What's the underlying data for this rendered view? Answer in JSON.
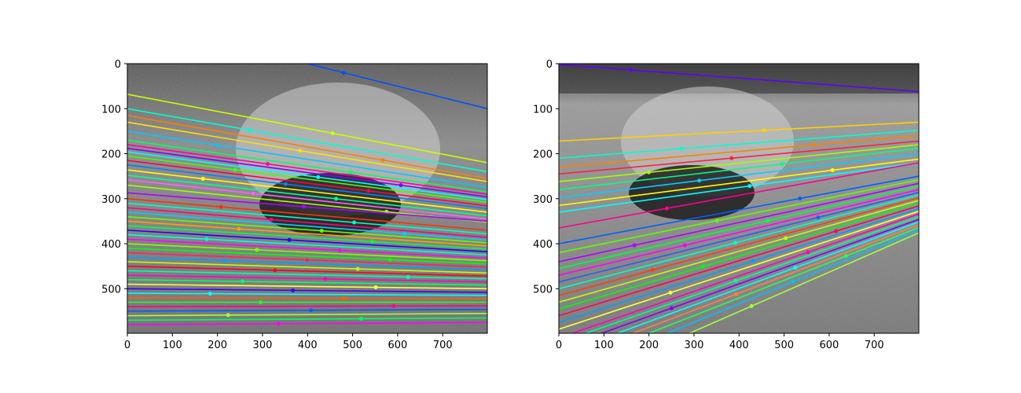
{
  "chart_data": [
    {
      "type": "image",
      "title": "",
      "xlabel": "",
      "ylabel": "",
      "xlim": [
        0,
        799
      ],
      "ylim": [
        599,
        0
      ],
      "xticks": [
        0,
        100,
        200,
        300,
        400,
        500,
        600,
        700
      ],
      "yticks": [
        0,
        100,
        200,
        300,
        400,
        500
      ],
      "xtick_labels": [
        "0",
        "100",
        "200",
        "300",
        "400",
        "500",
        "600",
        "700"
      ],
      "ytick_labels": [
        "0",
        "100",
        "200",
        "300",
        "400",
        "500"
      ],
      "content": "grayscale photo with colored epipolar lines",
      "lines": [
        {
          "x1": 400,
          "y1": 0,
          "x2": 799,
          "y2": 100,
          "color": "#0050ff"
        },
        {
          "x1": 0,
          "y1": 68,
          "x2": 799,
          "y2": 220,
          "color": "#c8ff00"
        },
        {
          "x1": 0,
          "y1": 100,
          "x2": 799,
          "y2": 240,
          "color": "#00ffd0"
        },
        {
          "x1": 0,
          "y1": 115,
          "x2": 799,
          "y2": 255,
          "color": "#ff8000"
        },
        {
          "x1": 0,
          "y1": 130,
          "x2": 799,
          "y2": 262,
          "color": "#ffe000"
        },
        {
          "x1": 0,
          "y1": 150,
          "x2": 799,
          "y2": 275,
          "color": "#00c8ff"
        },
        {
          "x1": 0,
          "y1": 170,
          "x2": 799,
          "y2": 285,
          "color": "#00ff60"
        },
        {
          "x1": 0,
          "y1": 180,
          "x2": 799,
          "y2": 290,
          "color": "#ff00a0"
        },
        {
          "x1": 0,
          "y1": 188,
          "x2": 799,
          "y2": 296,
          "color": "#8000ff"
        },
        {
          "x1": 0,
          "y1": 196,
          "x2": 799,
          "y2": 302,
          "color": "#00ffff"
        },
        {
          "x1": 0,
          "y1": 205,
          "x2": 799,
          "y2": 308,
          "color": "#40ff00"
        },
        {
          "x1": 0,
          "y1": 215,
          "x2": 799,
          "y2": 316,
          "color": "#ff0040"
        },
        {
          "x1": 0,
          "y1": 225,
          "x2": 799,
          "y2": 322,
          "color": "#0080ff"
        },
        {
          "x1": 0,
          "y1": 236,
          "x2": 799,
          "y2": 330,
          "color": "#ffff00"
        },
        {
          "x1": 0,
          "y1": 248,
          "x2": 799,
          "y2": 338,
          "color": "#00ff90"
        },
        {
          "x1": 0,
          "y1": 258,
          "x2": 799,
          "y2": 345,
          "color": "#ff60ff"
        },
        {
          "x1": 0,
          "y1": 270,
          "x2": 799,
          "y2": 352,
          "color": "#a0ff00"
        },
        {
          "x1": 0,
          "y1": 287,
          "x2": 799,
          "y2": 350,
          "color": "#b000ff"
        },
        {
          "x1": 0,
          "y1": 300,
          "x2": 799,
          "y2": 370,
          "color": "#ff3000"
        },
        {
          "x1": 0,
          "y1": 310,
          "x2": 799,
          "y2": 378,
          "color": "#00ffc0"
        },
        {
          "x1": 0,
          "y1": 320,
          "x2": 799,
          "y2": 386,
          "color": "#ff0080"
        },
        {
          "x1": 0,
          "y1": 330,
          "x2": 799,
          "y2": 392,
          "color": "#00d0ff"
        },
        {
          "x1": 0,
          "y1": 340,
          "x2": 799,
          "y2": 398,
          "color": "#60ff00"
        },
        {
          "x1": 0,
          "y1": 350,
          "x2": 799,
          "y2": 405,
          "color": "#ffa000"
        },
        {
          "x1": 0,
          "y1": 360,
          "x2": 799,
          "y2": 412,
          "color": "#00ff40"
        },
        {
          "x1": 0,
          "y1": 370,
          "x2": 799,
          "y2": 418,
          "color": "#2000ff"
        },
        {
          "x1": 0,
          "y1": 380,
          "x2": 799,
          "y2": 425,
          "color": "#00ffe0"
        },
        {
          "x1": 0,
          "y1": 390,
          "x2": 799,
          "y2": 432,
          "color": "#ff00ff"
        },
        {
          "x1": 0,
          "y1": 400,
          "x2": 799,
          "y2": 438,
          "color": "#80ff00"
        },
        {
          "x1": 0,
          "y1": 410,
          "x2": 799,
          "y2": 445,
          "color": "#00ff00"
        },
        {
          "x1": 0,
          "y1": 420,
          "x2": 799,
          "y2": 452,
          "color": "#ff2060"
        },
        {
          "x1": 0,
          "y1": 430,
          "x2": 799,
          "y2": 458,
          "color": "#00a0ff"
        },
        {
          "x1": 0,
          "y1": 440,
          "x2": 799,
          "y2": 465,
          "color": "#c0ff00"
        },
        {
          "x1": 0,
          "y1": 450,
          "x2": 799,
          "y2": 472,
          "color": "#ff0020"
        },
        {
          "x1": 0,
          "y1": 460,
          "x2": 799,
          "y2": 478,
          "color": "#00ffb0"
        },
        {
          "x1": 0,
          "y1": 470,
          "x2": 799,
          "y2": 485,
          "color": "#ff00c0"
        },
        {
          "x1": 0,
          "y1": 480,
          "x2": 799,
          "y2": 492,
          "color": "#00ff70"
        },
        {
          "x1": 0,
          "y1": 490,
          "x2": 799,
          "y2": 500,
          "color": "#ffff40"
        },
        {
          "x1": 0,
          "y1": 500,
          "x2": 799,
          "y2": 508,
          "color": "#4000ff"
        },
        {
          "x1": 0,
          "y1": 510,
          "x2": 799,
          "y2": 515,
          "color": "#00ffff"
        },
        {
          "x1": 0,
          "y1": 520,
          "x2": 799,
          "y2": 522,
          "color": "#ff6000"
        },
        {
          "x1": 0,
          "y1": 530,
          "x2": 799,
          "y2": 530,
          "color": "#20ff20"
        },
        {
          "x1": 0,
          "y1": 540,
          "x2": 799,
          "y2": 538,
          "color": "#ff0090"
        },
        {
          "x1": 0,
          "y1": 550,
          "x2": 799,
          "y2": 546,
          "color": "#0060ff"
        },
        {
          "x1": 0,
          "y1": 560,
          "x2": 799,
          "y2": 555,
          "color": "#a0ff40"
        },
        {
          "x1": 0,
          "y1": 570,
          "x2": 799,
          "y2": 565,
          "color": "#00ff50"
        },
        {
          "x1": 0,
          "y1": 580,
          "x2": 799,
          "y2": 575,
          "color": "#ff00ff"
        }
      ]
    },
    {
      "type": "image",
      "title": "",
      "xlabel": "",
      "ylabel": "",
      "xlim": [
        0,
        799
      ],
      "ylim": [
        599,
        0
      ],
      "xticks": [
        0,
        100,
        200,
        300,
        400,
        500,
        600,
        700
      ],
      "yticks": [
        0,
        100,
        200,
        300,
        400,
        500
      ],
      "xtick_labels": [
        "0",
        "100",
        "200",
        "300",
        "400",
        "500",
        "600",
        "700"
      ],
      "ytick_labels": [
        "0",
        "100",
        "200",
        "300",
        "400",
        "500"
      ],
      "content": "grayscale photo with colored epipolar lines",
      "lines": [
        {
          "x1": 0,
          "y1": 2,
          "x2": 799,
          "y2": 62,
          "color": "#6000ff"
        },
        {
          "x1": 0,
          "y1": 172,
          "x2": 799,
          "y2": 130,
          "color": "#ffd000"
        },
        {
          "x1": 0,
          "y1": 210,
          "x2": 799,
          "y2": 148,
          "color": "#00ffd0"
        },
        {
          "x1": 0,
          "y1": 230,
          "x2": 799,
          "y2": 160,
          "color": "#ff8000"
        },
        {
          "x1": 0,
          "y1": 245,
          "x2": 799,
          "y2": 172,
          "color": "#ff2040"
        },
        {
          "x1": 0,
          "y1": 262,
          "x2": 799,
          "y2": 180,
          "color": "#a0ff00"
        },
        {
          "x1": 0,
          "y1": 280,
          "x2": 799,
          "y2": 188,
          "color": "#00ff80"
        },
        {
          "x1": 0,
          "y1": 298,
          "x2": 799,
          "y2": 200,
          "color": "#00d0ff"
        },
        {
          "x1": 0,
          "y1": 315,
          "x2": 799,
          "y2": 212,
          "color": "#ffff00"
        },
        {
          "x1": 0,
          "y1": 330,
          "x2": 799,
          "y2": 220,
          "color": "#00ffff"
        },
        {
          "x1": 0,
          "y1": 365,
          "x2": 799,
          "y2": 220,
          "color": "#ff0090"
        },
        {
          "x1": 0,
          "y1": 400,
          "x2": 799,
          "y2": 250,
          "color": "#0060ff"
        },
        {
          "x1": 0,
          "y1": 420,
          "x2": 799,
          "y2": 258,
          "color": "#60ff00"
        },
        {
          "x1": 0,
          "y1": 440,
          "x2": 799,
          "y2": 266,
          "color": "#b000ff"
        },
        {
          "x1": 0,
          "y1": 455,
          "x2": 799,
          "y2": 272,
          "color": "#00ff40"
        },
        {
          "x1": 0,
          "y1": 470,
          "x2": 799,
          "y2": 280,
          "color": "#ff00ff"
        },
        {
          "x1": 0,
          "y1": 485,
          "x2": 799,
          "y2": 286,
          "color": "#2060ff"
        },
        {
          "x1": 0,
          "y1": 500,
          "x2": 799,
          "y2": 292,
          "color": "#00ffc0"
        },
        {
          "x1": 0,
          "y1": 515,
          "x2": 799,
          "y2": 298,
          "color": "#ff4000"
        },
        {
          "x1": 0,
          "y1": 530,
          "x2": 799,
          "y2": 304,
          "color": "#c0ff00"
        },
        {
          "x1": 0,
          "y1": 545,
          "x2": 799,
          "y2": 310,
          "color": "#00ff00"
        },
        {
          "x1": 0,
          "y1": 560,
          "x2": 799,
          "y2": 316,
          "color": "#ff0060"
        },
        {
          "x1": 0,
          "y1": 575,
          "x2": 799,
          "y2": 322,
          "color": "#00a0ff"
        },
        {
          "x1": 0,
          "y1": 590,
          "x2": 799,
          "y2": 328,
          "color": "#ffff40"
        },
        {
          "x1": 30,
          "y1": 599,
          "x2": 799,
          "y2": 334,
          "color": "#ff00c0"
        },
        {
          "x1": 60,
          "y1": 599,
          "x2": 799,
          "y2": 340,
          "color": "#00ff90"
        },
        {
          "x1": 95,
          "y1": 599,
          "x2": 799,
          "y2": 346,
          "color": "#8000ff"
        },
        {
          "x1": 130,
          "y1": 599,
          "x2": 799,
          "y2": 352,
          "color": "#00ffff"
        },
        {
          "x1": 165,
          "y1": 599,
          "x2": 799,
          "y2": 358,
          "color": "#ff8040"
        },
        {
          "x1": 200,
          "y1": 599,
          "x2": 799,
          "y2": 364,
          "color": "#20ff60"
        },
        {
          "x1": 240,
          "y1": 599,
          "x2": 799,
          "y2": 370,
          "color": "#00c0ff"
        },
        {
          "x1": 290,
          "y1": 599,
          "x2": 799,
          "y2": 376,
          "color": "#a0ff40"
        }
      ]
    }
  ]
}
